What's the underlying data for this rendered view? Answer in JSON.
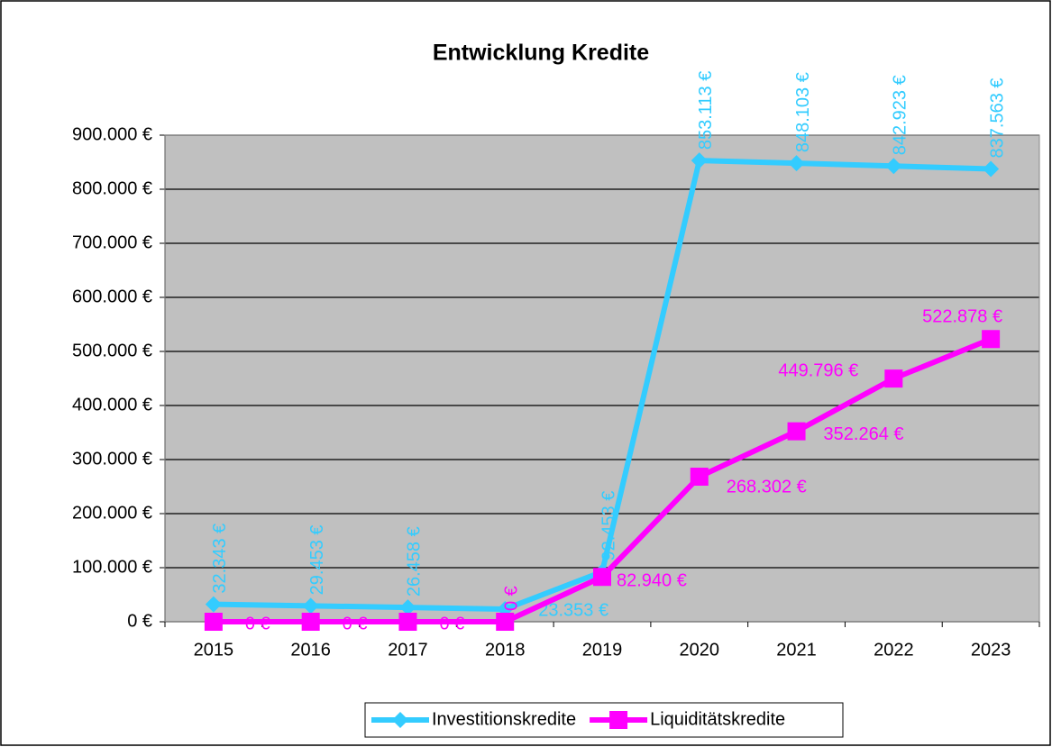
{
  "chart_data": {
    "type": "line",
    "title": "Entwicklung Kredite",
    "categories": [
      "2015",
      "2016",
      "2017",
      "2018",
      "2019",
      "2020",
      "2021",
      "2022",
      "2023"
    ],
    "series": [
      {
        "name": "Investitionskredite",
        "color": "#33ccff",
        "marker": "diamond",
        "values": [
          32343,
          29453,
          26458,
          23353,
          92453,
          853113,
          848103,
          842923,
          837563
        ],
        "value_labels": [
          "32.343 €",
          "29.453 €",
          "26.458 €",
          "23.353 €",
          "92.453 €",
          "853.113 €",
          "848.103 €",
          "842.923 €",
          "837.563 €"
        ]
      },
      {
        "name": "Liquiditätskredite",
        "color": "#ff00ff",
        "marker": "square",
        "values": [
          0,
          0,
          0,
          0,
          82940,
          268302,
          352264,
          449796,
          522878
        ],
        "value_labels": [
          "0 €",
          "0 €",
          "0 €",
          "0 €",
          "82.940 €",
          "268.302 €",
          "352.264 €",
          "449.796 €",
          "522.878 €"
        ]
      }
    ],
    "ylim": [
      0,
      900000
    ],
    "yticks": [
      {
        "value": 0,
        "label": "0 €"
      },
      {
        "value": 100000,
        "label": "100.000 €"
      },
      {
        "value": 200000,
        "label": "200.000 €"
      },
      {
        "value": 300000,
        "label": "300.000 €"
      },
      {
        "value": 400000,
        "label": "400.000 €"
      },
      {
        "value": 500000,
        "label": "500.000 €"
      },
      {
        "value": 600000,
        "label": "600.000 €"
      },
      {
        "value": 700000,
        "label": "700.000 €"
      },
      {
        "value": 800000,
        "label": "800.000 €"
      },
      {
        "value": 900000,
        "label": "900.000 €"
      }
    ],
    "grid": true,
    "legend": "bottom",
    "plot_background": "#c0c0c0"
  }
}
